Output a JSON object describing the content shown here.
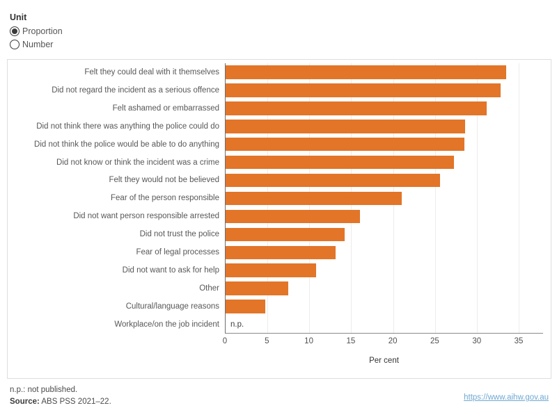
{
  "unit_control": {
    "label": "Unit",
    "options": [
      {
        "label": "Proportion",
        "selected": true
      },
      {
        "label": "Number",
        "selected": false
      }
    ]
  },
  "chart_data": {
    "type": "bar",
    "orientation": "horizontal",
    "categories": [
      "Felt they could deal with it themselves",
      "Did not regard the incident as a serious offence",
      "Felt ashamed or embarrassed",
      "Did not think there was anything the police could do",
      "Did not think the police would be able to do anything",
      "Did not know or think the incident was a crime",
      "Felt they would not be believed",
      "Fear of the person responsible",
      "Did not want person responsible arrested",
      "Did not trust the police",
      "Fear of legal processes",
      "Did not want to ask for help",
      "Other",
      "Cultural/language reasons",
      "Workplace/on the job incident"
    ],
    "values": [
      33.5,
      32.8,
      31.2,
      28.6,
      28.5,
      27.3,
      25.6,
      21.0,
      16.0,
      14.2,
      13.1,
      10.8,
      7.5,
      4.7,
      null
    ],
    "not_published_label": "n.p.",
    "xlabel": "Per cent",
    "x_ticks": [
      0,
      5,
      10,
      15,
      20,
      25,
      30,
      35
    ],
    "xlim": [
      0,
      37.9
    ],
    "grid": true,
    "legend": "none",
    "bar_color": "#e27528"
  },
  "footer": {
    "note": "n.p.: not published.",
    "source_label": "Source:",
    "source_text": " ABS PSS 2021–22.",
    "link": "https://www.aihw.gov.au"
  },
  "colors": {
    "bar": "#e27528",
    "link": "#6fa8d2",
    "gridline": "#ececec"
  }
}
